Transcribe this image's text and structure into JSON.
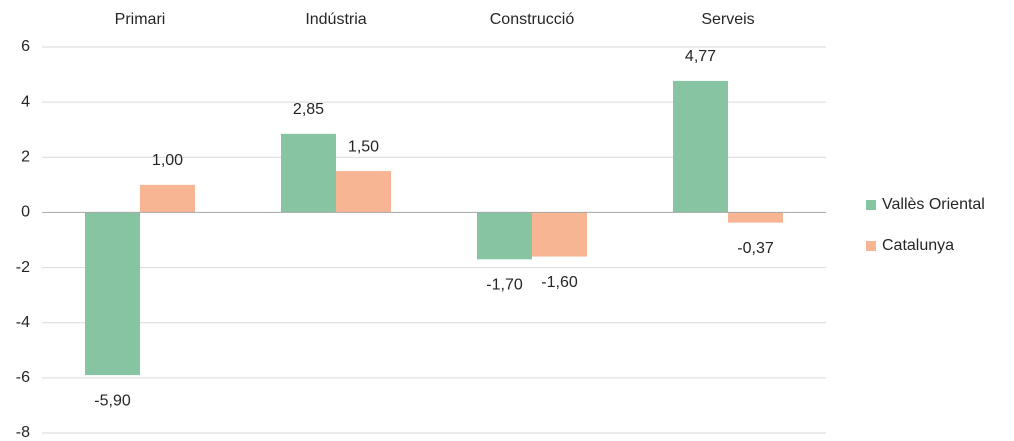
{
  "chart_data": {
    "type": "bar",
    "categories": [
      "Primari",
      "Indústria",
      "Construcció",
      "Serveis"
    ],
    "series": [
      {
        "name": "Vallès Oriental",
        "color": "#86c4a2",
        "values": [
          -5.9,
          2.85,
          -1.7,
          4.77
        ],
        "value_labels": [
          "-5,90",
          "2,85",
          "-1,70",
          "4,77"
        ]
      },
      {
        "name": "Catalunya",
        "color": "#f8b593",
        "values": [
          1.0,
          1.5,
          -1.6,
          -0.37
        ],
        "value_labels": [
          "1,00",
          "1,50",
          "-1,60",
          "-0,37"
        ]
      }
    ],
    "ylim": [
      -8,
      6
    ],
    "yticks": [
      -8,
      -6,
      -4,
      -2,
      0,
      2,
      4,
      6
    ],
    "grid": true,
    "legend": "right"
  }
}
